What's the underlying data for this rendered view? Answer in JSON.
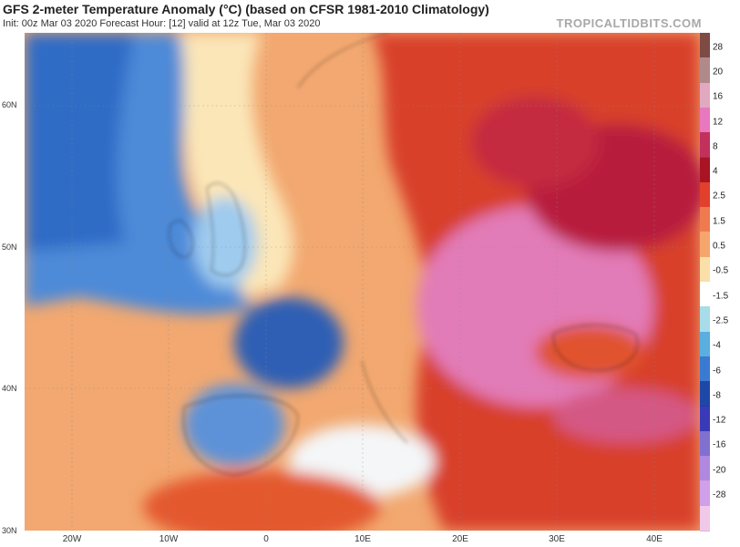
{
  "header": {
    "title": "GFS 2-meter Temperature Anomaly (°C) (based on CFSR 1981-2010 Climatology)",
    "subtitle": "Init: 00z Mar 03 2020   Forecast Hour: [12]   valid at 12z Tue, Mar 03 2020",
    "brand": "TROPICALTIDBITS.COM"
  },
  "map": {
    "lat_labels": [
      "60N",
      "50N",
      "40N",
      "30N"
    ],
    "lon_labels": [
      "20W",
      "10W",
      "0",
      "10E",
      "20E",
      "30E",
      "40E"
    ]
  },
  "colorbar": {
    "labels": [
      "28",
      "20",
      "16",
      "12",
      "8",
      "4",
      "2.5",
      "1.5",
      "0.5",
      "-0.5",
      "-1.5",
      "-2.5",
      "-4",
      "-6",
      "-8",
      "-12",
      "-16",
      "-20",
      "-28"
    ],
    "colors": [
      "#7d4a44",
      "#b08a8a",
      "#e0a9c0",
      "#e878c0",
      "#c2305c",
      "#a81424",
      "#e0402c",
      "#f07a50",
      "#f6a66c",
      "#fae0a8",
      "#ffffff",
      "#a8dcea",
      "#5aaee0",
      "#3a7ad0",
      "#1f47a8",
      "#3a3ab8",
      "#8070d0",
      "#b088e0",
      "#d0a0e8",
      "#f0c8e8"
    ]
  },
  "colors": {
    "ocean_base": "#5a94d6",
    "warm_anomaly": "#c8283c",
    "cold_anomaly": "#2e5fb8"
  }
}
